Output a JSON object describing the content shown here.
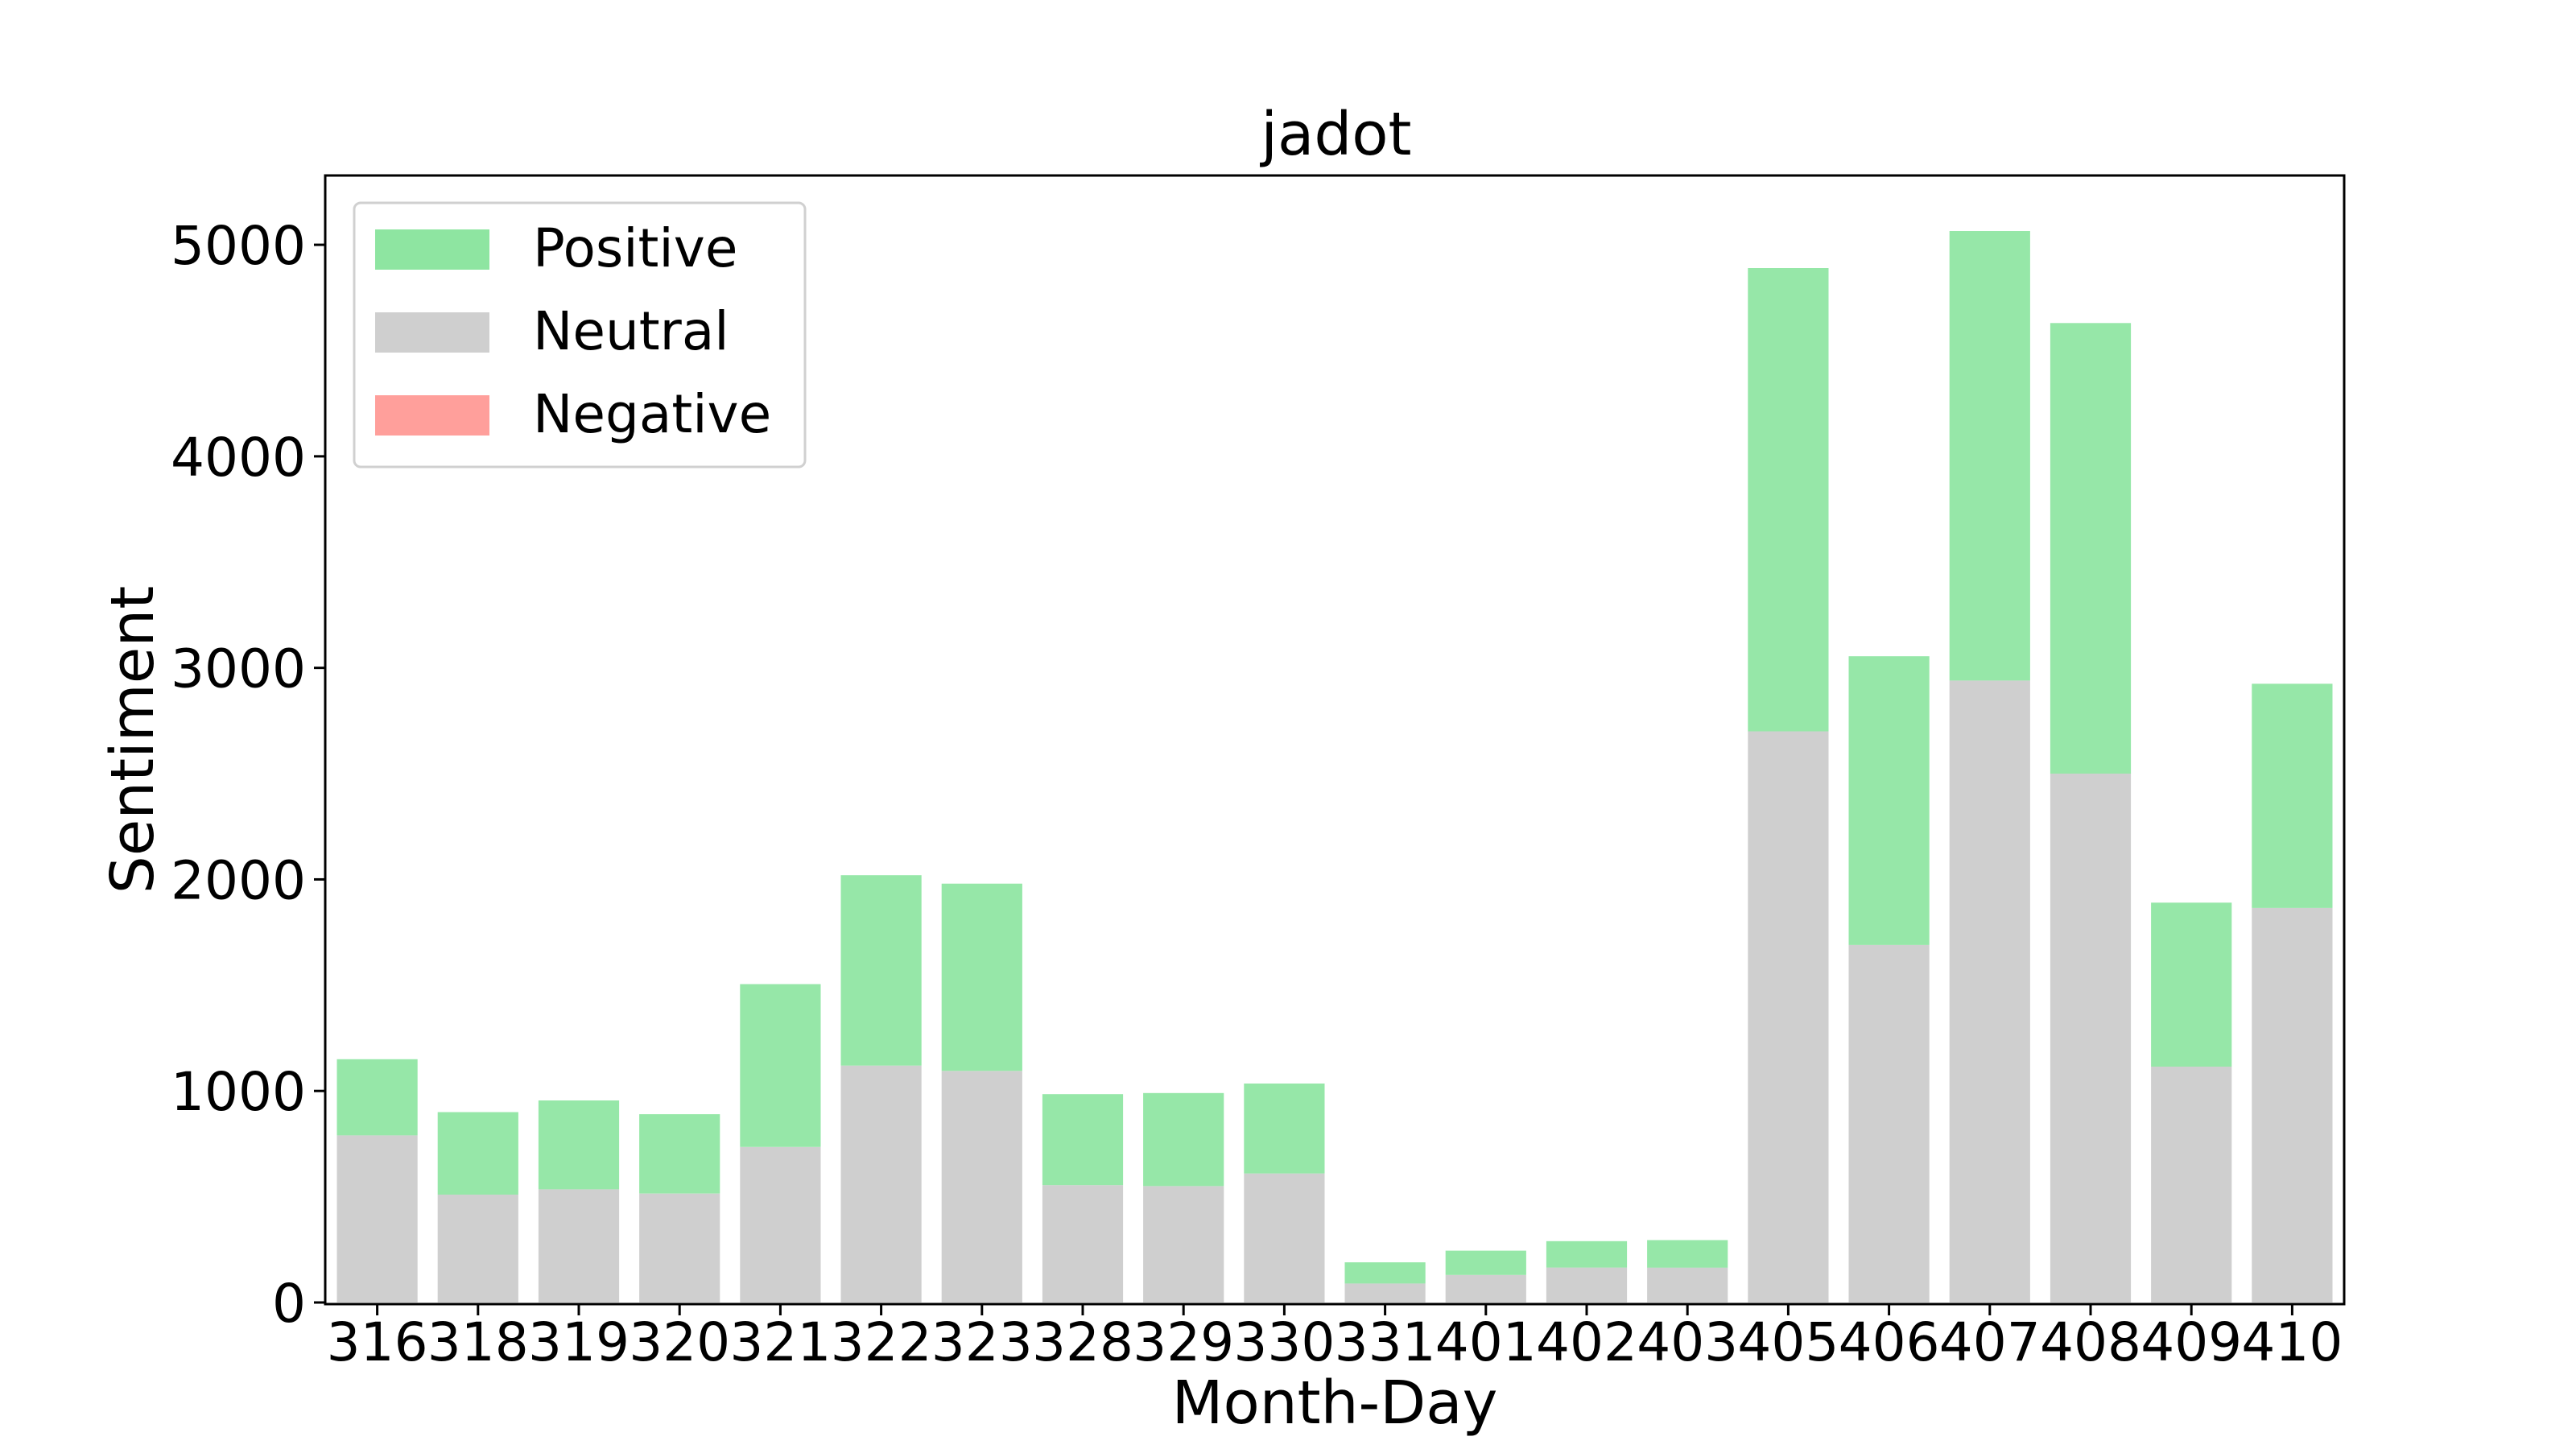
{
  "colors": {
    "positive": "#8ee5a1",
    "neutral": "#cfcfcf",
    "negative": "#ff9f9b",
    "background": "#ffffff"
  },
  "chart_data": {
    "type": "bar",
    "stacked": true,
    "title": "jadot",
    "xlabel": "Month-Day",
    "ylabel": "Sentiment",
    "ylim": [
      0,
      5320
    ],
    "yticks": [
      0,
      1000,
      2000,
      3000,
      4000,
      5000
    ],
    "grid": false,
    "legend_position": "top-left",
    "categories": [
      "316",
      "318",
      "319",
      "320",
      "321",
      "322",
      "323",
      "328",
      "329",
      "330",
      "331",
      "401",
      "402",
      "403",
      "405",
      "406",
      "407",
      "408",
      "409",
      "410"
    ],
    "series": [
      {
        "name": "Neutral",
        "color_key": "neutral",
        "values": [
          790,
          510,
          535,
          515,
          735,
          1120,
          1095,
          555,
          550,
          610,
          90,
          130,
          165,
          165,
          2700,
          1690,
          2940,
          2500,
          1115,
          1865
        ]
      },
      {
        "name": "Positive",
        "color_key": "positive",
        "values": [
          360,
          390,
          420,
          375,
          770,
          900,
          885,
          430,
          440,
          425,
          100,
          115,
          125,
          130,
          2190,
          1365,
          2125,
          2130,
          775,
          1060
        ]
      },
      {
        "name": "Negative",
        "color_key": "negative",
        "values": [
          0,
          0,
          0,
          0,
          0,
          0,
          0,
          0,
          0,
          0,
          0,
          0,
          0,
          0,
          0,
          0,
          0,
          0,
          0,
          0
        ]
      }
    ],
    "legend": [
      "Positive",
      "Neutral",
      "Negative"
    ]
  }
}
